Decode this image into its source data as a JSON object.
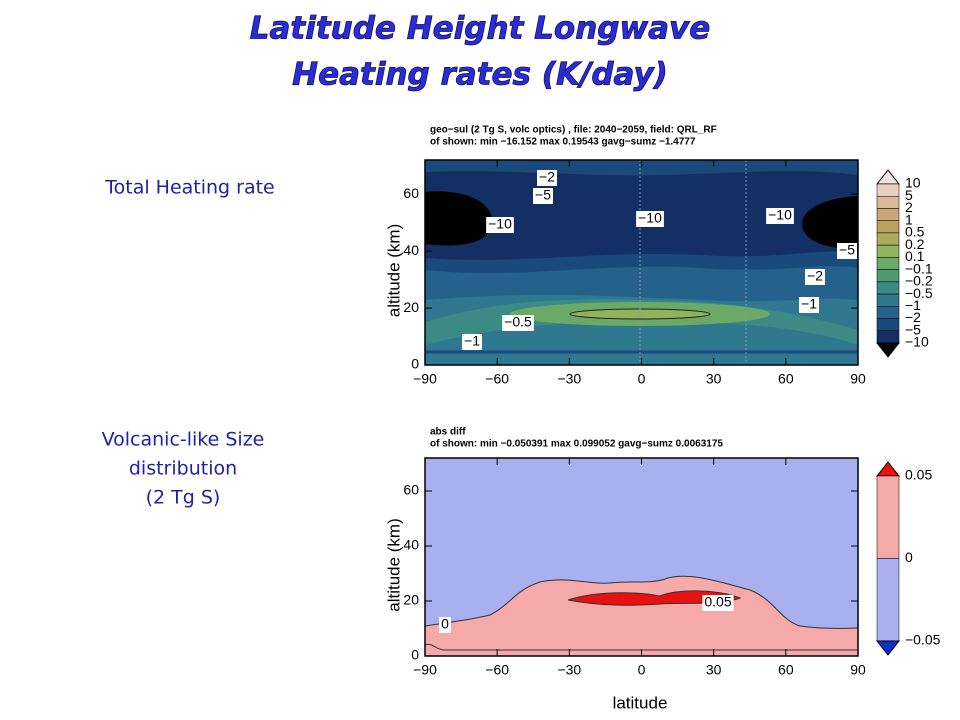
{
  "title": [
    "Latitude Height Longwave",
    "Heating rates (K/day)"
  ],
  "x_label": "latitude",
  "panels": [
    {
      "side_label": [
        "Total Heating rate"
      ],
      "header": [
        "geo−sul (2 Tg S, volc optics) ,  file: 2040−2059, field: QRL_RF",
        "of shown:  min −16.152 max 0.19543  gavg−sumz −1.4777"
      ],
      "y_label": "altitude (km)",
      "xlim": [
        -90,
        90
      ],
      "ylim": [
        0,
        72
      ],
      "xticks": [
        {
          "value": -90,
          "label": "−90"
        },
        {
          "value": -60,
          "label": "−60"
        },
        {
          "value": -30,
          "label": "−30"
        },
        0,
        30,
        60,
        90
      ],
      "yticks": [
        0,
        20,
        40,
        60
      ],
      "colorbar": {
        "labels": [
          "10",
          "5",
          "2",
          "1",
          "0.5",
          "0.2",
          "0.1",
          "−0.1",
          "−0.2",
          "−0.5",
          "−1",
          "−2",
          "−5",
          "−10"
        ],
        "colors": [
          "#f3e3de",
          "#e8cfc0",
          "#d9b99a",
          "#c9a77a",
          "#b9a15f",
          "#a9ad5c",
          "#8fb35f",
          "#6aa966",
          "#4f9a70",
          "#3b8a85",
          "#2f7890",
          "#24628c",
          "#1a4a7c",
          "#132f63",
          "#000000"
        ]
      },
      "contour_labels": [
        "−2",
        "−5",
        "−10",
        "−10",
        "−10",
        "−5",
        "−2",
        "−1",
        "−0.5",
        "−1"
      ]
    },
    {
      "side_label": [
        "Volcanic-like Size",
        "distribution",
        "(2 Tg S)"
      ],
      "header": [
        "abs diff",
        "of shown:  min −0.050391 max 0.099052  gavg−sumz 0.0063175"
      ],
      "y_label": "altitude (km)",
      "xlim": [
        -90,
        90
      ],
      "ylim": [
        0,
        72
      ],
      "xticks": [
        {
          "value": -90,
          "label": "−90"
        },
        {
          "value": -60,
          "label": "−60"
        },
        {
          "value": -30,
          "label": "−30"
        },
        0,
        30,
        60,
        90
      ],
      "yticks": [
        0,
        20,
        40,
        60
      ],
      "colorbar": {
        "labels": [
          "0.05",
          "0",
          "−0.05"
        ],
        "colors": [
          "#e81010",
          "#f6a9a9",
          "#a9b0f0",
          "#1030c8"
        ]
      },
      "contour_labels": [
        "0",
        "0.05"
      ]
    }
  ]
}
